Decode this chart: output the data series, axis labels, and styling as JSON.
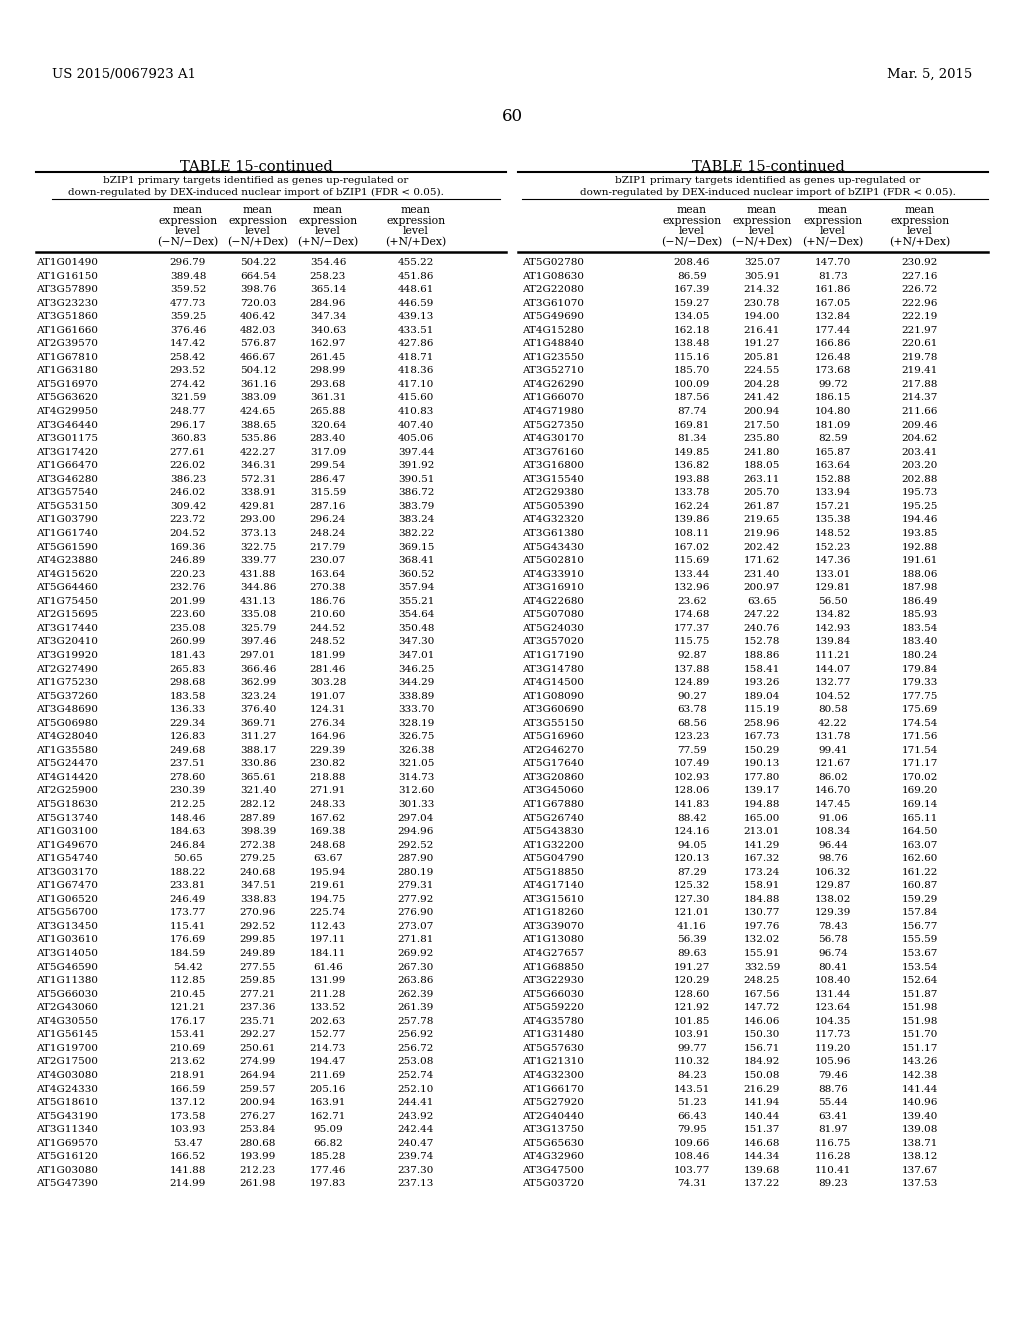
{
  "header_left": "US 2015/0067923 A1",
  "header_right": "Mar. 5, 2015",
  "page_number": "60",
  "table_title": "TABLE 15-continued",
  "subtitle_line1": "bZIP1 primary targets identified as genes up-regulated or",
  "subtitle_line2": "down-regulated by DEX-induced nuclear import of bZIP1 (FDR < 0.05).",
  "col_headers": [
    [
      "mean",
      "expression",
      "level",
      "(−N/−Dex)"
    ],
    [
      "mean",
      "expression",
      "level",
      "(−N/+Dex)"
    ],
    [
      "mean",
      "expression",
      "level",
      "(+N/−Dex)"
    ],
    [
      "mean",
      "expression",
      "level",
      "(+N/+Dex)"
    ]
  ],
  "left_data": [
    [
      "AT1G01490",
      "296.79",
      "504.22",
      "354.46",
      "455.22"
    ],
    [
      "AT1G16150",
      "389.48",
      "664.54",
      "258.23",
      "451.86"
    ],
    [
      "AT3G57890",
      "359.52",
      "398.76",
      "365.14",
      "448.61"
    ],
    [
      "AT3G23230",
      "477.73",
      "720.03",
      "284.96",
      "446.59"
    ],
    [
      "AT3G51860",
      "359.25",
      "406.42",
      "347.34",
      "439.13"
    ],
    [
      "AT1G61660",
      "376.46",
      "482.03",
      "340.63",
      "433.51"
    ],
    [
      "AT2G39570",
      "147.42",
      "576.87",
      "162.97",
      "427.86"
    ],
    [
      "AT1G67810",
      "258.42",
      "466.67",
      "261.45",
      "418.71"
    ],
    [
      "AT1G63180",
      "293.52",
      "504.12",
      "298.99",
      "418.36"
    ],
    [
      "AT5G16970",
      "274.42",
      "361.16",
      "293.68",
      "417.10"
    ],
    [
      "AT5G63620",
      "321.59",
      "383.09",
      "361.31",
      "415.60"
    ],
    [
      "AT4G29950",
      "248.77",
      "424.65",
      "265.88",
      "410.83"
    ],
    [
      "AT3G46440",
      "296.17",
      "388.65",
      "320.64",
      "407.40"
    ],
    [
      "AT3G01175",
      "360.83",
      "535.86",
      "283.40",
      "405.06"
    ],
    [
      "AT3G17420",
      "277.61",
      "422.27",
      "317.09",
      "397.44"
    ],
    [
      "AT1G66470",
      "226.02",
      "346.31",
      "299.54",
      "391.92"
    ],
    [
      "AT3G46280",
      "386.23",
      "572.31",
      "286.47",
      "390.51"
    ],
    [
      "AT3G57540",
      "246.02",
      "338.91",
      "315.59",
      "386.72"
    ],
    [
      "AT5G53150",
      "309.42",
      "429.81",
      "287.16",
      "383.79"
    ],
    [
      "AT1G03790",
      "223.72",
      "293.00",
      "296.24",
      "383.24"
    ],
    [
      "AT1G61740",
      "204.52",
      "373.13",
      "248.24",
      "382.22"
    ],
    [
      "AT5G61590",
      "169.36",
      "322.75",
      "217.79",
      "369.15"
    ],
    [
      "AT4G23880",
      "246.89",
      "339.77",
      "230.07",
      "368.41"
    ],
    [
      "AT4G15620",
      "220.23",
      "431.88",
      "163.64",
      "360.52"
    ],
    [
      "AT5G64460",
      "232.76",
      "344.86",
      "270.38",
      "357.94"
    ],
    [
      "AT1G75450",
      "201.99",
      "431.13",
      "186.76",
      "355.21"
    ],
    [
      "AT2G15695",
      "223.60",
      "335.08",
      "210.60",
      "354.64"
    ],
    [
      "AT3G17440",
      "235.08",
      "325.79",
      "244.52",
      "350.48"
    ],
    [
      "AT3G20410",
      "260.99",
      "397.46",
      "248.52",
      "347.30"
    ],
    [
      "AT3G19920",
      "181.43",
      "297.01",
      "181.99",
      "347.01"
    ],
    [
      "AT2G27490",
      "265.83",
      "366.46",
      "281.46",
      "346.25"
    ],
    [
      "AT1G75230",
      "298.68",
      "362.99",
      "303.28",
      "344.29"
    ],
    [
      "AT5G37260",
      "183.58",
      "323.24",
      "191.07",
      "338.89"
    ],
    [
      "AT3G48690",
      "136.33",
      "376.40",
      "124.31",
      "333.70"
    ],
    [
      "AT5G06980",
      "229.34",
      "369.71",
      "276.34",
      "328.19"
    ],
    [
      "AT4G28040",
      "126.83",
      "311.27",
      "164.96",
      "326.75"
    ],
    [
      "AT1G35580",
      "249.68",
      "388.17",
      "229.39",
      "326.38"
    ],
    [
      "AT5G24470",
      "237.51",
      "330.86",
      "230.82",
      "321.05"
    ],
    [
      "AT4G14420",
      "278.60",
      "365.61",
      "218.88",
      "314.73"
    ],
    [
      "AT2G25900",
      "230.39",
      "321.40",
      "271.91",
      "312.60"
    ],
    [
      "AT5G18630",
      "212.25",
      "282.12",
      "248.33",
      "301.33"
    ],
    [
      "AT5G13740",
      "148.46",
      "287.89",
      "167.62",
      "297.04"
    ],
    [
      "AT1G03100",
      "184.63",
      "398.39",
      "169.38",
      "294.96"
    ],
    [
      "AT1G49670",
      "246.84",
      "272.38",
      "248.68",
      "292.52"
    ],
    [
      "AT1G54740",
      "50.65",
      "279.25",
      "63.67",
      "287.90"
    ],
    [
      "AT3G03170",
      "188.22",
      "240.68",
      "195.94",
      "280.19"
    ],
    [
      "AT1G67470",
      "233.81",
      "347.51",
      "219.61",
      "279.31"
    ],
    [
      "AT1G06520",
      "246.49",
      "338.83",
      "194.75",
      "277.92"
    ],
    [
      "AT5G56700",
      "173.77",
      "270.96",
      "225.74",
      "276.90"
    ],
    [
      "AT3G13450",
      "115.41",
      "292.52",
      "112.43",
      "273.07"
    ],
    [
      "AT1G03610",
      "176.69",
      "299.85",
      "197.11",
      "271.81"
    ],
    [
      "AT3G14050",
      "184.59",
      "249.89",
      "184.11",
      "269.92"
    ],
    [
      "AT5G46590",
      "54.42",
      "277.55",
      "61.46",
      "267.30"
    ],
    [
      "AT1G11380",
      "112.85",
      "259.85",
      "131.99",
      "263.86"
    ],
    [
      "AT5G66030",
      "210.45",
      "277.21",
      "211.28",
      "262.39"
    ],
    [
      "AT2G43060",
      "121.21",
      "237.36",
      "133.52",
      "261.39"
    ],
    [
      "AT4G30550",
      "176.17",
      "235.71",
      "202.63",
      "257.78"
    ],
    [
      "AT1G56145",
      "153.41",
      "292.27",
      "152.77",
      "256.92"
    ],
    [
      "AT1G19700",
      "210.69",
      "250.61",
      "214.73",
      "256.72"
    ],
    [
      "AT2G17500",
      "213.62",
      "274.99",
      "194.47",
      "253.08"
    ],
    [
      "AT4G03080",
      "218.91",
      "264.94",
      "211.69",
      "252.74"
    ],
    [
      "AT4G24330",
      "166.59",
      "259.57",
      "205.16",
      "252.10"
    ],
    [
      "AT5G18610",
      "137.12",
      "200.94",
      "163.91",
      "244.41"
    ],
    [
      "AT5G43190",
      "173.58",
      "276.27",
      "162.71",
      "243.92"
    ],
    [
      "AT3G11340",
      "103.93",
      "253.84",
      "95.09",
      "242.44"
    ],
    [
      "AT1G69570",
      "53.47",
      "280.68",
      "66.82",
      "240.47"
    ],
    [
      "AT5G16120",
      "166.52",
      "193.99",
      "185.28",
      "239.74"
    ],
    [
      "AT1G03080",
      "141.88",
      "212.23",
      "177.46",
      "237.30"
    ],
    [
      "AT5G47390",
      "214.99",
      "261.98",
      "197.83",
      "237.13"
    ]
  ],
  "right_data": [
    [
      "AT5G02780",
      "208.46",
      "325.07",
      "147.70",
      "230.92"
    ],
    [
      "AT1G08630",
      "86.59",
      "305.91",
      "81.73",
      "227.16"
    ],
    [
      "AT2G22080",
      "167.39",
      "214.32",
      "161.86",
      "226.72"
    ],
    [
      "AT3G61070",
      "159.27",
      "230.78",
      "167.05",
      "222.96"
    ],
    [
      "AT5G49690",
      "134.05",
      "194.00",
      "132.84",
      "222.19"
    ],
    [
      "AT4G15280",
      "162.18",
      "216.41",
      "177.44",
      "221.97"
    ],
    [
      "AT1G48840",
      "138.48",
      "191.27",
      "166.86",
      "220.61"
    ],
    [
      "AT1G23550",
      "115.16",
      "205.81",
      "126.48",
      "219.78"
    ],
    [
      "AT3G52710",
      "185.70",
      "224.55",
      "173.68",
      "219.41"
    ],
    [
      "AT4G26290",
      "100.09",
      "204.28",
      "99.72",
      "217.88"
    ],
    [
      "AT1G66070",
      "187.56",
      "241.42",
      "186.15",
      "214.37"
    ],
    [
      "AT4G71980",
      "87.74",
      "200.94",
      "104.80",
      "211.66"
    ],
    [
      "AT5G27350",
      "169.81",
      "217.50",
      "181.09",
      "209.46"
    ],
    [
      "AT4G30170",
      "81.34",
      "235.80",
      "82.59",
      "204.62"
    ],
    [
      "AT3G76160",
      "149.85",
      "241.80",
      "165.87",
      "203.41"
    ],
    [
      "AT3G16800",
      "136.82",
      "188.05",
      "163.64",
      "203.20"
    ],
    [
      "AT3G15540",
      "193.88",
      "263.11",
      "152.88",
      "202.88"
    ],
    [
      "AT2G29380",
      "133.78",
      "205.70",
      "133.94",
      "195.73"
    ],
    [
      "AT5G05390",
      "162.24",
      "261.87",
      "157.21",
      "195.25"
    ],
    [
      "AT4G32320",
      "139.86",
      "219.65",
      "135.38",
      "194.46"
    ],
    [
      "AT3G61380",
      "108.11",
      "219.96",
      "148.52",
      "193.85"
    ],
    [
      "AT5G43430",
      "167.02",
      "202.42",
      "152.23",
      "192.88"
    ],
    [
      "AT5G02810",
      "115.69",
      "171.62",
      "147.36",
      "191.61"
    ],
    [
      "AT4G33910",
      "133.44",
      "231.40",
      "133.01",
      "188.06"
    ],
    [
      "AT3G16910",
      "132.96",
      "200.97",
      "129.81",
      "187.98"
    ],
    [
      "AT4G22680",
      "23.62",
      "63.65",
      "56.50",
      "186.49"
    ],
    [
      "AT5G07080",
      "174.68",
      "247.22",
      "134.82",
      "185.93"
    ],
    [
      "AT5G24030",
      "177.37",
      "240.76",
      "142.93",
      "183.54"
    ],
    [
      "AT3G57020",
      "115.75",
      "152.78",
      "139.84",
      "183.40"
    ],
    [
      "AT1G17190",
      "92.87",
      "188.86",
      "111.21",
      "180.24"
    ],
    [
      "AT3G14780",
      "137.88",
      "158.41",
      "144.07",
      "179.84"
    ],
    [
      "AT4G14500",
      "124.89",
      "193.26",
      "132.77",
      "179.33"
    ],
    [
      "AT1G08090",
      "90.27",
      "189.04",
      "104.52",
      "177.75"
    ],
    [
      "AT3G60690",
      "63.78",
      "115.19",
      "80.58",
      "175.69"
    ],
    [
      "AT3G55150",
      "68.56",
      "258.96",
      "42.22",
      "174.54"
    ],
    [
      "AT5G16960",
      "123.23",
      "167.73",
      "131.78",
      "171.56"
    ],
    [
      "AT2G46270",
      "77.59",
      "150.29",
      "99.41",
      "171.54"
    ],
    [
      "AT5G17640",
      "107.49",
      "190.13",
      "121.67",
      "171.17"
    ],
    [
      "AT3G20860",
      "102.93",
      "177.80",
      "86.02",
      "170.02"
    ],
    [
      "AT3G45060",
      "128.06",
      "139.17",
      "146.70",
      "169.20"
    ],
    [
      "AT1G67880",
      "141.83",
      "194.88",
      "147.45",
      "169.14"
    ],
    [
      "AT5G26740",
      "88.42",
      "165.00",
      "91.06",
      "165.11"
    ],
    [
      "AT5G43830",
      "124.16",
      "213.01",
      "108.34",
      "164.50"
    ],
    [
      "AT1G32200",
      "94.05",
      "141.29",
      "96.44",
      "163.07"
    ],
    [
      "AT5G04790",
      "120.13",
      "167.32",
      "98.76",
      "162.60"
    ],
    [
      "AT5G18850",
      "87.29",
      "173.24",
      "106.32",
      "161.22"
    ],
    [
      "AT4G17140",
      "125.32",
      "158.91",
      "129.87",
      "160.87"
    ],
    [
      "AT3G15610",
      "127.30",
      "184.88",
      "138.02",
      "159.29"
    ],
    [
      "AT1G18260",
      "121.01",
      "130.77",
      "129.39",
      "157.84"
    ],
    [
      "AT3G39070",
      "41.16",
      "197.76",
      "78.43",
      "156.77"
    ],
    [
      "AT1G13080",
      "56.39",
      "132.02",
      "56.78",
      "155.59"
    ],
    [
      "AT4G27657",
      "89.63",
      "155.91",
      "96.74",
      "153.67"
    ],
    [
      "AT1G68850",
      "191.27",
      "332.59",
      "80.41",
      "153.54"
    ],
    [
      "AT3G22930",
      "120.29",
      "248.25",
      "108.40",
      "152.64"
    ],
    [
      "AT5G66030",
      "128.60",
      "167.56",
      "131.44",
      "151.87"
    ],
    [
      "AT5G59220",
      "121.92",
      "147.72",
      "123.64",
      "151.98"
    ],
    [
      "AT4G35780",
      "101.85",
      "146.06",
      "104.35",
      "151.98"
    ],
    [
      "AT1G31480",
      "103.91",
      "150.30",
      "117.73",
      "151.70"
    ],
    [
      "AT5G57630",
      "99.77",
      "156.71",
      "119.20",
      "151.17"
    ],
    [
      "AT1G21310",
      "110.32",
      "184.92",
      "105.96",
      "143.26"
    ],
    [
      "AT4G32300",
      "84.23",
      "150.08",
      "79.46",
      "142.38"
    ],
    [
      "AT1G66170",
      "143.51",
      "216.29",
      "88.76",
      "141.44"
    ],
    [
      "AT5G27920",
      "51.23",
      "141.94",
      "55.44",
      "140.96"
    ],
    [
      "AT2G40440",
      "66.43",
      "140.44",
      "63.41",
      "139.40"
    ],
    [
      "AT3G13750",
      "79.95",
      "151.37",
      "81.97",
      "139.08"
    ],
    [
      "AT5G65630",
      "109.66",
      "146.68",
      "116.75",
      "138.71"
    ],
    [
      "AT4G32960",
      "108.46",
      "144.34",
      "116.28",
      "138.12"
    ],
    [
      "AT3G47500",
      "103.77",
      "139.68",
      "110.41",
      "137.67"
    ],
    [
      "AT5G03720",
      "74.31",
      "137.22",
      "89.23",
      "137.53"
    ]
  ]
}
